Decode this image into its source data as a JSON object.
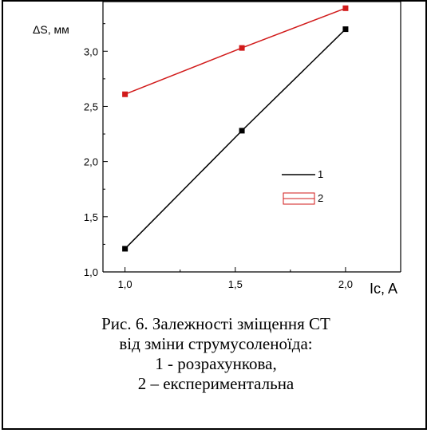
{
  "chart_data": {
    "type": "line",
    "xlabel": "Ic, A",
    "ylabel": "ΔS, мм",
    "x_ticks": [
      "1,0",
      "1,5",
      "2,0"
    ],
    "y_ticks": [
      "1,0",
      "1,5",
      "2,0",
      "2,5",
      "3,0"
    ],
    "xlim": [
      0.9,
      2.25
    ],
    "ylim": [
      1.0,
      3.45
    ],
    "series": [
      {
        "name": "1",
        "color": "#000000",
        "marker": "square",
        "x": [
          1.0,
          1.53,
          2.0
        ],
        "y": [
          1.21,
          2.28,
          3.2
        ]
      },
      {
        "name": "2",
        "color": "#d11a1a",
        "marker": "square",
        "x": [
          1.0,
          1.53,
          2.0
        ],
        "y": [
          2.61,
          3.03,
          3.39
        ]
      }
    ],
    "legend": {
      "placement": "center-right",
      "entries": [
        "1",
        "2"
      ]
    },
    "grid": false
  },
  "caption": {
    "line1": "Рис. 6. Залежності зміщення СТ",
    "line2": "від зміни струмусоленоїда:",
    "line3": "1 - розрахункова,",
    "line4": "2 – експериментальна"
  }
}
